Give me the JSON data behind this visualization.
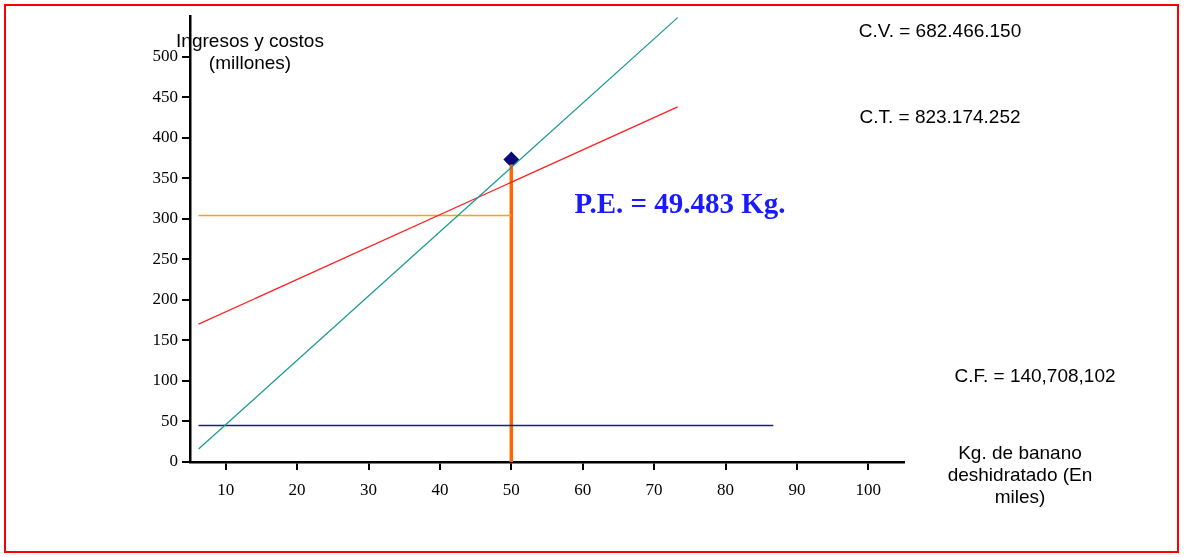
{
  "chart_data": {
    "type": "line",
    "ylabel": "Ingresos y costos (millones)",
    "xlabel": "Kg. de banano deshidratado (En miles)",
    "xlim": [
      5,
      105
    ],
    "xticks": [
      10,
      20,
      30,
      40,
      50,
      60,
      70,
      80,
      90,
      100
    ],
    "ylim": [
      0,
      550
    ],
    "yticks": [
      0,
      50,
      100,
      150,
      200,
      250,
      300,
      350,
      400,
      450,
      500
    ],
    "grid": false,
    "legend": false,
    "series": [
      {
        "color": "#1f9a94",
        "x": [
          6.2,
          73.3
        ],
        "values": [
          16,
          548
        ]
      },
      {
        "color": "#ff2020",
        "x": [
          6.2,
          73.3
        ],
        "values": [
          170,
          438
        ]
      },
      {
        "color": "#1a1a9a",
        "x": [
          6.2,
          86.7
        ],
        "values": [
          45,
          45
        ]
      },
      {
        "color": "#ffa500",
        "x": [
          6.2,
          50
        ],
        "values": [
          304,
          304
        ]
      },
      {
        "color": "#ff6600",
        "x": [
          50,
          50
        ],
        "values": [
          0,
          367
        ]
      },
      {
        "type": "scatter",
        "color": "#0a0a7a",
        "marker": "diamond",
        "x": [
          50
        ],
        "values": [
          373
        ]
      }
    ],
    "annotations": [
      "C.V. = 682.466.150",
      "C.T. = 823.174.252",
      "C.F. = 140,708,102",
      "P.E. = 49.483 Kg."
    ]
  }
}
